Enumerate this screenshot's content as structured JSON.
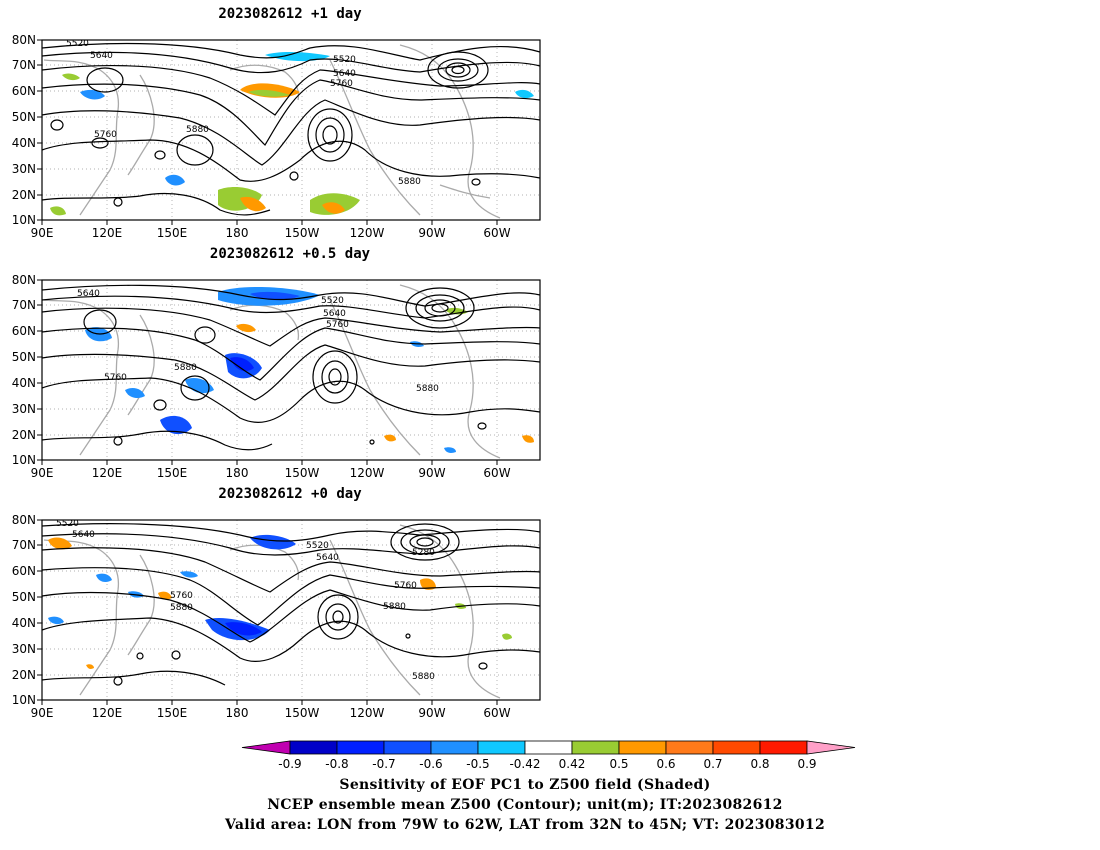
{
  "panels": [
    {
      "title": "2023082612  +1 day",
      "contour_labels": [
        "5520",
        "5640",
        "5520",
        "5640",
        "5760",
        "5760",
        "5880",
        "5880"
      ]
    },
    {
      "title": "2023082612  +0.5 day",
      "contour_labels": [
        "5640",
        "5520",
        "5640",
        "5760",
        "5760",
        "5880",
        "5880"
      ]
    },
    {
      "title": "2023082612  +0 day",
      "contour_labels": [
        "5520",
        "5640",
        "5520",
        "5640",
        "5280",
        "5760",
        "5760",
        "5880",
        "5880",
        "5880"
      ]
    }
  ],
  "map": {
    "lat_ticks": [
      "80N",
      "70N",
      "60N",
      "50N",
      "40N",
      "30N",
      "20N",
      "10N"
    ],
    "lon_ticks": [
      "90E",
      "120E",
      "150E",
      "180",
      "150W",
      "120W",
      "90W",
      "60W"
    ],
    "lat_range": [
      10,
      80
    ],
    "lon_range_deg_east": [
      90,
      320
    ]
  },
  "colorbar": {
    "colors": [
      "#c000b0",
      "#0000c8",
      "#0020ff",
      "#1050ff",
      "#2090ff",
      "#10c8ff",
      "#ffffff",
      "#99cc33",
      "#ff9900",
      "#ff7a1a",
      "#ff4a00",
      "#ff1a00",
      "#ffa0c8"
    ],
    "tick_labels": [
      "-0.9",
      "-0.8",
      "-0.7",
      "-0.6",
      "-0.5",
      "-0.42",
      "0.42",
      "0.5",
      "0.6",
      "0.7",
      "0.8",
      "0.9"
    ]
  },
  "caption": {
    "line1": "Sensitivity of EOF PC1 to Z500 field (Shaded)",
    "line2": "NCEP ensemble mean Z500 (Contour); unit(m); IT:2023082612",
    "line3": "Valid area: LON from 79W to 62W, LAT from 32N to 45N; VT: 2023083012"
  }
}
